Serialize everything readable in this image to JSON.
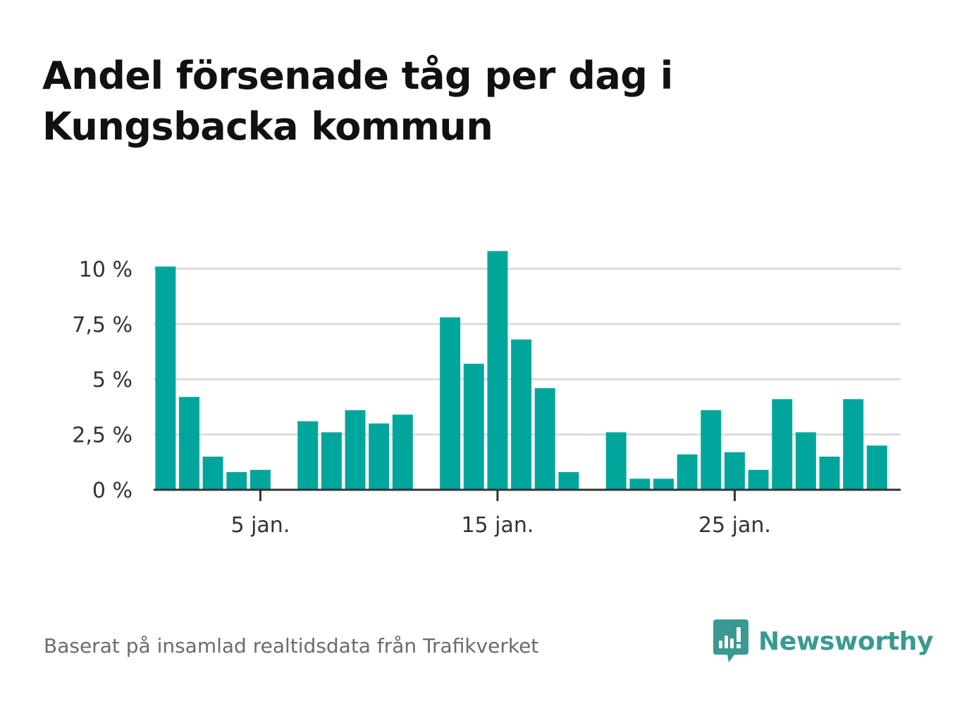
{
  "title": "Andel försenade tåg per dag i Kungsbacka kommun",
  "source": "Baserat på insamlad realtidsdata från Trafikverket",
  "brand": {
    "name": "Newsworthy",
    "logo_icon": "bar-chart-speech-bubble-icon"
  },
  "colors": {
    "bar": "#00a69c",
    "grid": "#dcdcdc",
    "axis": "#333333",
    "brand": "#3a9a92"
  },
  "chart_data": {
    "type": "bar",
    "x": [
      1,
      2,
      3,
      4,
      5,
      6,
      7,
      8,
      9,
      10,
      11,
      12,
      13,
      14,
      15,
      16,
      17,
      18,
      19,
      20,
      21,
      22,
      23,
      24,
      25,
      26,
      27,
      28,
      29,
      30,
      31
    ],
    "values": [
      10.1,
      4.2,
      1.5,
      0.8,
      0.9,
      0,
      3.1,
      2.6,
      3.6,
      3.0,
      3.4,
      0,
      7.8,
      5.7,
      10.8,
      6.8,
      4.6,
      0.8,
      0,
      2.6,
      0.5,
      0.5,
      1.6,
      3.6,
      1.7,
      0.9,
      4.1,
      2.6,
      1.5,
      4.1,
      2.0
    ],
    "y_ticks": [
      0,
      2.5,
      5,
      7.5,
      10
    ],
    "y_tick_labels": [
      "0 %",
      "2,5 %",
      "5 %",
      "7,5 %",
      "10 %"
    ],
    "x_ticks": [
      5,
      15,
      25
    ],
    "x_tick_labels": [
      "5 jan.",
      "15 jan.",
      "25 jan."
    ],
    "ylim": [
      0,
      11
    ],
    "xlim": [
      0.5,
      32
    ],
    "grid": true,
    "title": "Andel försenade tåg per dag i Kungsbacka kommun"
  }
}
